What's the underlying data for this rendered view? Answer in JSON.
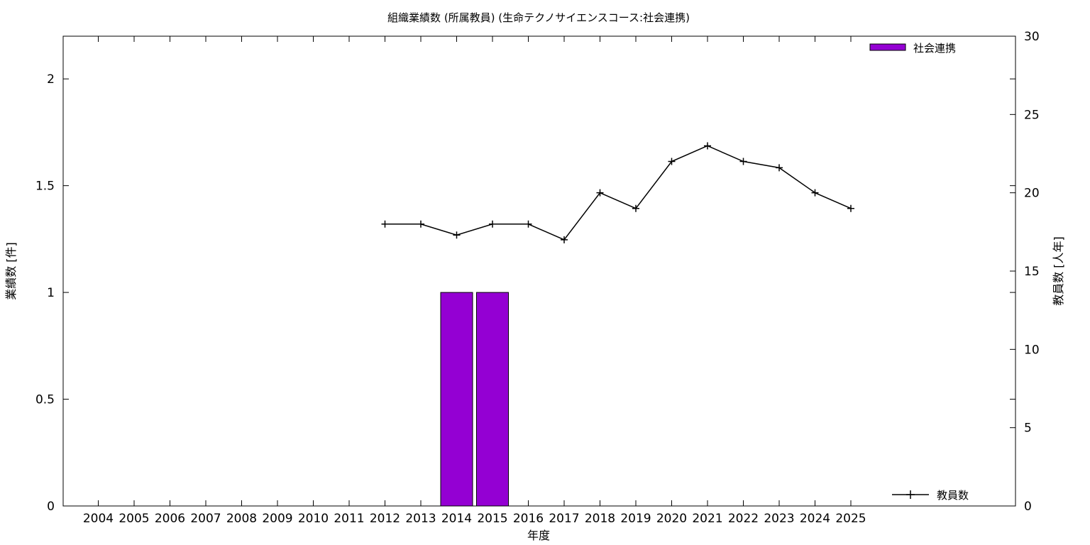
{
  "chart_data": {
    "type": "bar",
    "title": "組織業績数 (所属教員) (生命テクノサイエンスコース:社会連携)",
    "xlabel": "年度",
    "ylabel": "業績数 [件]",
    "y2label": "教員数 [人年]",
    "categories": [
      "2004",
      "2005",
      "2006",
      "2007",
      "2008",
      "2009",
      "2010",
      "2011",
      "2012",
      "2013",
      "2014",
      "2015",
      "2016",
      "2017",
      "2018",
      "2019",
      "2020",
      "2021",
      "2022",
      "2023",
      "2024",
      "2025"
    ],
    "ylim": [
      0,
      2.2
    ],
    "yticks": [
      "0",
      "0.5",
      "1",
      "1.5",
      "2"
    ],
    "y2lim": [
      0,
      30
    ],
    "y2ticks": [
      "0",
      "5",
      "10",
      "15",
      "20",
      "25",
      "30"
    ],
    "series": [
      {
        "name": "社会連携",
        "kind": "bar",
        "axis": "left",
        "color": "#9400d3",
        "values": [
          0,
          0,
          0,
          0,
          0,
          0,
          0,
          0,
          0,
          0,
          1,
          1,
          0,
          0,
          0,
          0,
          0,
          0,
          0,
          0,
          0,
          0
        ]
      },
      {
        "name": "教員数",
        "kind": "line",
        "axis": "right",
        "color": "#000000",
        "marker": "plus",
        "values": [
          null,
          null,
          null,
          null,
          null,
          null,
          null,
          null,
          18,
          18,
          17.3,
          18,
          18,
          17,
          20,
          19,
          22,
          23,
          22,
          21.6,
          20,
          19
        ]
      }
    ],
    "legend": {
      "bar_position": "top-right",
      "line_position": "bottom-right"
    },
    "grid": false
  }
}
